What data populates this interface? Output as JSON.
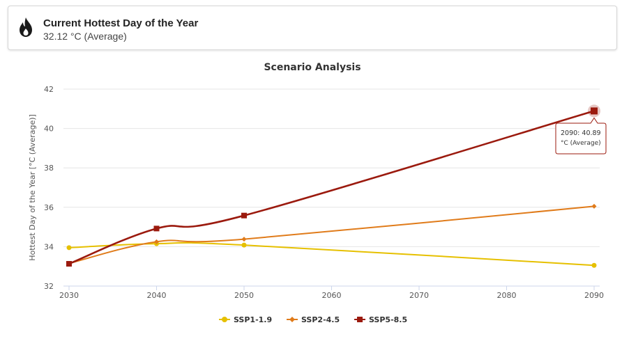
{
  "summary": {
    "title": "Current Hottest Day of the Year",
    "value": "32.12",
    "unit": "°C",
    "stat": "(Average)",
    "icon": "flame-icon"
  },
  "chart_data": {
    "type": "line",
    "title": "Scenario Analysis",
    "xlabel": "",
    "ylabel": "Hottest Day of the Year [°C (Average)]",
    "xlim": [
      2030,
      2090
    ],
    "ylim": [
      32,
      42
    ],
    "xticks": [
      2030,
      2040,
      2050,
      2060,
      2070,
      2080,
      2090
    ],
    "yticks": [
      32,
      34,
      36,
      38,
      40,
      42
    ],
    "grid": true,
    "legend_position": "bottom",
    "x": [
      2030,
      2040,
      2050,
      2090
    ],
    "series": [
      {
        "name": "SSP1-1.9",
        "color": "#e6c000",
        "marker": "circle",
        "values": [
          33.95,
          34.15,
          34.08,
          33.05
        ]
      },
      {
        "name": "SSP2-4.5",
        "color": "#e07b1a",
        "marker": "diamond",
        "values": [
          33.15,
          34.25,
          34.38,
          36.05
        ]
      },
      {
        "name": "SSP5-8.5",
        "color": "#9b1a0e",
        "marker": "square",
        "values": [
          33.13,
          34.92,
          35.58,
          40.89
        ]
      }
    ],
    "tooltip": {
      "series": "SSP5-8.5",
      "x": 2090,
      "value": 40.89,
      "line1": "2090: 40.89",
      "line2": "°C (Average)"
    }
  }
}
